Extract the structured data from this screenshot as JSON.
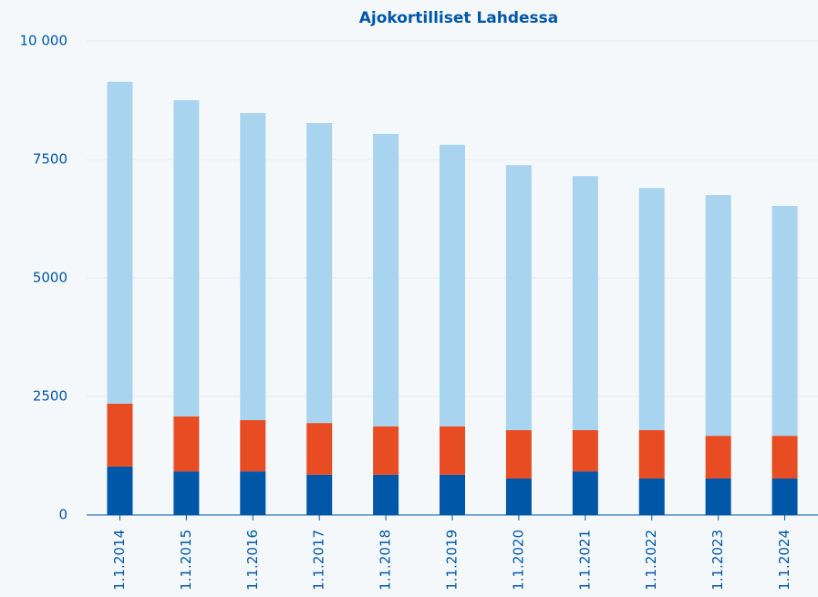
{
  "chart_data": {
    "type": "stacked_bar",
    "title": "Ajokortilliset Lahdessa",
    "categories": [
      "1.1.2014",
      "1.1.2015",
      "1.1.2016",
      "1.1.2017",
      "1.1.2018",
      "1.1.2019",
      "1.1.2020",
      "1.1.2021",
      "1.1.2022",
      "1.1.2023",
      "1.1.2024"
    ],
    "series": [
      {
        "color": "#0057a8",
        "values": [
          1020,
          920,
          920,
          850,
          850,
          850,
          770,
          920,
          770,
          770,
          770
        ]
      },
      {
        "color": "#e84c22",
        "values": [
          1330,
          1160,
          1080,
          1090,
          1020,
          1020,
          1020,
          870,
          1020,
          900,
          900
        ]
      },
      {
        "color": "#a9d4ef",
        "values": [
          6790,
          6670,
          6480,
          6330,
          6170,
          5940,
          5590,
          5360,
          5110,
          5080,
          4850
        ]
      }
    ],
    "ylim": [
      0,
      10000
    ],
    "yticks": [
      0,
      2500,
      5000,
      7500,
      {
        "value": 10000,
        "label": "10 000"
      }
    ],
    "grid": true
  }
}
